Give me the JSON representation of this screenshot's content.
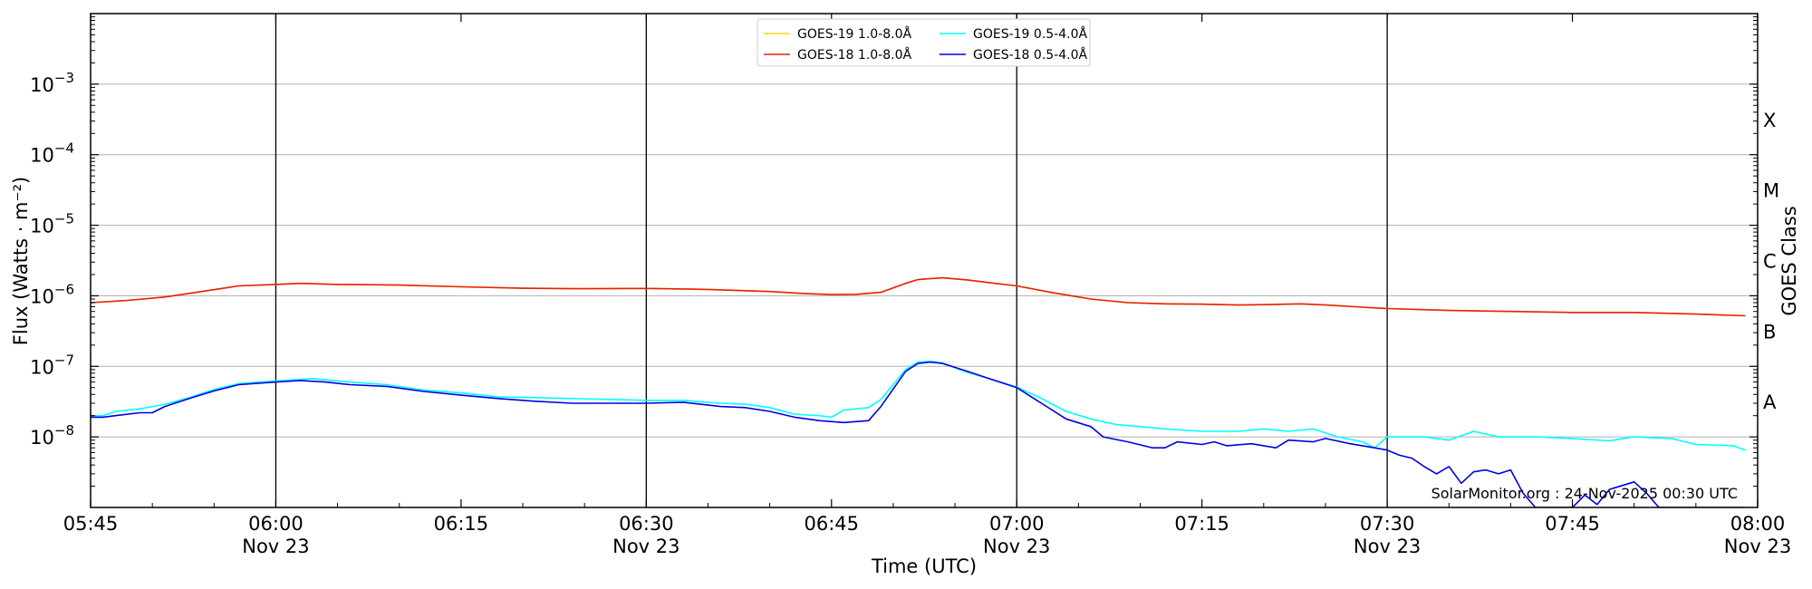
{
  "chart_data": {
    "type": "line",
    "xlabel": "Time (UTC)",
    "ylabel": "Flux (Watts · m⁻²)",
    "right_label": "GOES Class",
    "x_range": [
      "05:45",
      "08:00"
    ],
    "x_ticks": [
      {
        "t": "05:45",
        "line1": "05:45",
        "line2": ""
      },
      {
        "t": "06:00",
        "line1": "06:00",
        "line2": "Nov 23"
      },
      {
        "t": "06:15",
        "line1": "06:15",
        "line2": ""
      },
      {
        "t": "06:30",
        "line1": "06:30",
        "line2": "Nov 23"
      },
      {
        "t": "06:45",
        "line1": "06:45",
        "line2": ""
      },
      {
        "t": "07:00",
        "line1": "07:00",
        "line2": "Nov 23"
      },
      {
        "t": "07:15",
        "line1": "07:15",
        "line2": ""
      },
      {
        "t": "07:30",
        "line1": "07:30",
        "line2": "Nov 23"
      },
      {
        "t": "07:45",
        "line1": "07:45",
        "line2": ""
      },
      {
        "t": "08:00",
        "line1": "08:00",
        "line2": "Nov 23"
      }
    ],
    "vertical_lines": [
      "06:00",
      "06:30",
      "07:00",
      "07:30"
    ],
    "y_scale": "log",
    "ylim": [
      1e-09,
      0.01
    ],
    "y_ticks": [
      {
        "value": 1e-08,
        "base": "10",
        "exp": "−8"
      },
      {
        "value": 1e-07,
        "base": "10",
        "exp": "−7"
      },
      {
        "value": 1e-06,
        "base": "10",
        "exp": "−6"
      },
      {
        "value": 1e-05,
        "base": "10",
        "exp": "−5"
      },
      {
        "value": 0.0001,
        "base": "10",
        "exp": "−4"
      },
      {
        "value": 0.001,
        "base": "10",
        "exp": "−3"
      }
    ],
    "class_labels": [
      {
        "label": "A",
        "value": 3.16e-08
      },
      {
        "label": "B",
        "value": 3.16e-07
      },
      {
        "label": "C",
        "value": 3.16e-06
      },
      {
        "label": "M",
        "value": 3.16e-05
      },
      {
        "label": "X",
        "value": 0.000316
      }
    ],
    "grid": true,
    "legend_position": "top-center",
    "legend": [
      {
        "name": "GOES-19 1.0-8.0Å",
        "color": "#ffd700"
      },
      {
        "name": "GOES-19 0.5-4.0Å",
        "color": "#00ffff"
      },
      {
        "name": "GOES-18 1.0-8.0Å",
        "color": "#e8200e"
      },
      {
        "name": "GOES-18 0.5-4.0Å",
        "color": "#0000e0"
      }
    ],
    "series": [
      {
        "name": "GOES-19 1.0-8.0Å",
        "color": "#ffd700",
        "points": [
          [
            "05:45",
            8e-07
          ],
          [
            "05:48",
            8.6e-07
          ],
          [
            "05:51",
            9.6e-07
          ],
          [
            "05:54",
            1.15e-06
          ],
          [
            "05:57",
            1.38e-06
          ],
          [
            "06:00",
            1.45e-06
          ],
          [
            "06:02",
            1.5e-06
          ],
          [
            "06:05",
            1.45e-06
          ],
          [
            "06:10",
            1.42e-06
          ],
          [
            "06:15",
            1.34e-06
          ],
          [
            "06:20",
            1.28e-06
          ],
          [
            "06:25",
            1.26e-06
          ],
          [
            "06:30",
            1.27e-06
          ],
          [
            "06:35",
            1.23e-06
          ],
          [
            "06:40",
            1.15e-06
          ],
          [
            "06:43",
            1.07e-06
          ],
          [
            "06:45",
            1.04e-06
          ],
          [
            "06:47",
            1.05e-06
          ],
          [
            "06:49",
            1.12e-06
          ],
          [
            "06:51",
            1.5e-06
          ],
          [
            "06:52",
            1.7e-06
          ],
          [
            "06:54",
            1.8e-06
          ],
          [
            "06:56",
            1.68e-06
          ],
          [
            "06:58",
            1.52e-06
          ],
          [
            "07:00",
            1.38e-06
          ],
          [
            "07:03",
            1.1e-06
          ],
          [
            "07:06",
            9e-07
          ],
          [
            "07:09",
            8e-07
          ],
          [
            "07:12",
            7.7e-07
          ],
          [
            "07:15",
            7.6e-07
          ],
          [
            "07:18",
            7.4e-07
          ],
          [
            "07:20",
            7.5e-07
          ],
          [
            "07:23",
            7.7e-07
          ],
          [
            "07:25",
            7.4e-07
          ],
          [
            "07:28",
            6.9e-07
          ],
          [
            "07:30",
            6.6e-07
          ],
          [
            "07:35",
            6.2e-07
          ],
          [
            "07:40",
            6e-07
          ],
          [
            "07:45",
            5.8e-07
          ],
          [
            "07:50",
            5.8e-07
          ],
          [
            "07:55",
            5.5e-07
          ],
          [
            "07:59",
            5.2e-07
          ]
        ]
      },
      {
        "name": "GOES-18 1.0-8.0Å",
        "color": "#e8200e",
        "points": [
          [
            "05:45",
            8e-07
          ],
          [
            "05:48",
            8.6e-07
          ],
          [
            "05:51",
            9.6e-07
          ],
          [
            "05:54",
            1.15e-06
          ],
          [
            "05:57",
            1.38e-06
          ],
          [
            "06:00",
            1.45e-06
          ],
          [
            "06:02",
            1.5e-06
          ],
          [
            "06:05",
            1.45e-06
          ],
          [
            "06:10",
            1.42e-06
          ],
          [
            "06:15",
            1.34e-06
          ],
          [
            "06:20",
            1.28e-06
          ],
          [
            "06:25",
            1.26e-06
          ],
          [
            "06:30",
            1.27e-06
          ],
          [
            "06:35",
            1.23e-06
          ],
          [
            "06:40",
            1.15e-06
          ],
          [
            "06:43",
            1.07e-06
          ],
          [
            "06:45",
            1.04e-06
          ],
          [
            "06:47",
            1.05e-06
          ],
          [
            "06:49",
            1.12e-06
          ],
          [
            "06:51",
            1.5e-06
          ],
          [
            "06:52",
            1.7e-06
          ],
          [
            "06:54",
            1.8e-06
          ],
          [
            "06:56",
            1.68e-06
          ],
          [
            "06:58",
            1.52e-06
          ],
          [
            "07:00",
            1.38e-06
          ],
          [
            "07:03",
            1.1e-06
          ],
          [
            "07:06",
            9e-07
          ],
          [
            "07:09",
            8e-07
          ],
          [
            "07:12",
            7.7e-07
          ],
          [
            "07:15",
            7.6e-07
          ],
          [
            "07:18",
            7.4e-07
          ],
          [
            "07:20",
            7.5e-07
          ],
          [
            "07:23",
            7.7e-07
          ],
          [
            "07:25",
            7.4e-07
          ],
          [
            "07:28",
            6.9e-07
          ],
          [
            "07:30",
            6.6e-07
          ],
          [
            "07:35",
            6.2e-07
          ],
          [
            "07:40",
            6e-07
          ],
          [
            "07:45",
            5.8e-07
          ],
          [
            "07:50",
            5.8e-07
          ],
          [
            "07:55",
            5.5e-07
          ],
          [
            "07:59",
            5.2e-07
          ]
        ]
      },
      {
        "name": "GOES-19 0.5-4.0Å",
        "color": "#00ffff",
        "points": [
          [
            "05:45",
            2e-08
          ],
          [
            "05:46",
            2e-08
          ],
          [
            "05:47",
            2.3e-08
          ],
          [
            "05:49",
            2.5e-08
          ],
          [
            "05:51",
            2.9e-08
          ],
          [
            "05:53",
            3.6e-08
          ],
          [
            "05:55",
            4.7e-08
          ],
          [
            "05:57",
            5.7e-08
          ],
          [
            "06:00",
            6.2e-08
          ],
          [
            "06:03",
            6.7e-08
          ],
          [
            "06:06",
            6e-08
          ],
          [
            "06:09",
            5.5e-08
          ],
          [
            "06:12",
            4.6e-08
          ],
          [
            "06:15",
            4.2e-08
          ],
          [
            "06:18",
            3.7e-08
          ],
          [
            "06:21",
            3.6e-08
          ],
          [
            "06:24",
            3.5e-08
          ],
          [
            "06:27",
            3.4e-08
          ],
          [
            "06:30",
            3.3e-08
          ],
          [
            "06:33",
            3.3e-08
          ],
          [
            "06:36",
            3e-08
          ],
          [
            "06:38",
            2.9e-08
          ],
          [
            "06:40",
            2.6e-08
          ],
          [
            "06:42",
            2.1e-08
          ],
          [
            "06:44",
            2e-08
          ],
          [
            "06:45",
            1.9e-08
          ],
          [
            "06:46",
            2.4e-08
          ],
          [
            "06:48",
            2.6e-08
          ],
          [
            "06:49",
            3.4e-08
          ],
          [
            "06:51",
            9e-08
          ],
          [
            "06:52",
            1.15e-07
          ],
          [
            "06:53",
            1.18e-07
          ],
          [
            "06:54",
            1.12e-07
          ],
          [
            "06:56",
            8.2e-08
          ],
          [
            "06:58",
            6.5e-08
          ],
          [
            "07:00",
            5.1e-08
          ],
          [
            "07:02",
            3.5e-08
          ],
          [
            "07:04",
            2.3e-08
          ],
          [
            "07:06",
            1.8e-08
          ],
          [
            "07:08",
            1.5e-08
          ],
          [
            "07:10",
            1.4e-08
          ],
          [
            "07:12",
            1.3e-08
          ],
          [
            "07:15",
            1.2e-08
          ],
          [
            "07:18",
            1.2e-08
          ],
          [
            "07:20",
            1.3e-08
          ],
          [
            "07:22",
            1.2e-08
          ],
          [
            "07:24",
            1.3e-08
          ],
          [
            "07:26",
            1e-08
          ],
          [
            "07:28",
            8.5e-09
          ],
          [
            "07:29",
            7e-09
          ],
          [
            "07:30",
            1e-08
          ],
          [
            "07:33",
            1e-08
          ],
          [
            "07:35",
            9e-09
          ],
          [
            "07:37",
            1.2e-08
          ],
          [
            "07:39",
            1e-08
          ],
          [
            "07:42",
            1e-08
          ],
          [
            "07:45",
            9.5e-09
          ],
          [
            "07:48",
            8.8e-09
          ],
          [
            "07:50",
            1e-08
          ],
          [
            "07:53",
            9.5e-09
          ],
          [
            "07:55",
            7.8e-09
          ],
          [
            "07:58",
            7.5e-09
          ],
          [
            "07:59",
            6.5e-09
          ]
        ]
      },
      {
        "name": "GOES-18 0.5-4.0Å",
        "color": "#0000e0",
        "points": [
          [
            "05:45",
            1.9e-08
          ],
          [
            "05:46",
            1.9e-08
          ],
          [
            "05:47",
            2e-08
          ],
          [
            "05:49",
            2.2e-08
          ],
          [
            "05:50",
            2.2e-08
          ],
          [
            "05:51",
            2.7e-08
          ],
          [
            "05:53",
            3.5e-08
          ],
          [
            "05:55",
            4.5e-08
          ],
          [
            "05:57",
            5.5e-08
          ],
          [
            "06:00",
            6e-08
          ],
          [
            "06:02",
            6.3e-08
          ],
          [
            "06:04",
            6e-08
          ],
          [
            "06:06",
            5.5e-08
          ],
          [
            "06:09",
            5.2e-08
          ],
          [
            "06:12",
            4.4e-08
          ],
          [
            "06:15",
            3.9e-08
          ],
          [
            "06:18",
            3.5e-08
          ],
          [
            "06:21",
            3.2e-08
          ],
          [
            "06:24",
            3e-08
          ],
          [
            "06:27",
            3e-08
          ],
          [
            "06:30",
            3e-08
          ],
          [
            "06:33",
            3.1e-08
          ],
          [
            "06:36",
            2.7e-08
          ],
          [
            "06:38",
            2.6e-08
          ],
          [
            "06:40",
            2.3e-08
          ],
          [
            "06:42",
            1.9e-08
          ],
          [
            "06:44",
            1.7e-08
          ],
          [
            "06:46",
            1.6e-08
          ],
          [
            "06:48",
            1.7e-08
          ],
          [
            "06:49",
            2.7e-08
          ],
          [
            "06:51",
            8.5e-08
          ],
          [
            "06:52",
            1.1e-07
          ],
          [
            "06:53",
            1.15e-07
          ],
          [
            "06:54",
            1.1e-07
          ],
          [
            "06:56",
            8.5e-08
          ],
          [
            "06:58",
            6.5e-08
          ],
          [
            "07:00",
            5e-08
          ],
          [
            "07:02",
            3e-08
          ],
          [
            "07:04",
            1.8e-08
          ],
          [
            "07:06",
            1.4e-08
          ],
          [
            "07:07",
            1e-08
          ],
          [
            "07:09",
            8.5e-09
          ],
          [
            "07:11",
            7e-09
          ],
          [
            "07:12",
            7e-09
          ],
          [
            "07:13",
            8.5e-09
          ],
          [
            "07:15",
            7.8e-09
          ],
          [
            "07:16",
            8.5e-09
          ],
          [
            "07:17",
            7.5e-09
          ],
          [
            "07:19",
            8e-09
          ],
          [
            "07:21",
            7e-09
          ],
          [
            "07:22",
            9e-09
          ],
          [
            "07:24",
            8.5e-09
          ],
          [
            "07:25",
            9.5e-09
          ],
          [
            "07:27",
            8e-09
          ],
          [
            "07:28",
            7.5e-09
          ],
          [
            "07:30",
            6.5e-09
          ],
          [
            "07:31",
            5.5e-09
          ],
          [
            "07:32",
            5e-09
          ],
          [
            "07:33",
            3.8e-09
          ],
          [
            "07:34",
            3e-09
          ],
          [
            "07:35",
            3.8e-09
          ],
          [
            "07:36",
            2.2e-09
          ],
          [
            "07:37",
            3.2e-09
          ],
          [
            "07:38",
            3.4e-09
          ],
          [
            "07:39",
            3e-09
          ],
          [
            "07:40",
            3.4e-09
          ],
          [
            "07:41",
            1.6e-09
          ],
          [
            "07:42",
            1e-09
          ],
          [
            "07:45",
            1e-09
          ],
          [
            "07:46",
            1.5e-09
          ],
          [
            "07:47",
            1.1e-09
          ],
          [
            "07:48",
            1.8e-09
          ],
          [
            "07:50",
            2.3e-09
          ],
          [
            "07:51",
            1.6e-09
          ],
          [
            "07:52",
            1e-09
          ],
          [
            "07:59",
            1e-09
          ]
        ]
      }
    ],
    "footer": "SolarMonitor.org : 24-Nov-2025 00:30 UTC"
  }
}
